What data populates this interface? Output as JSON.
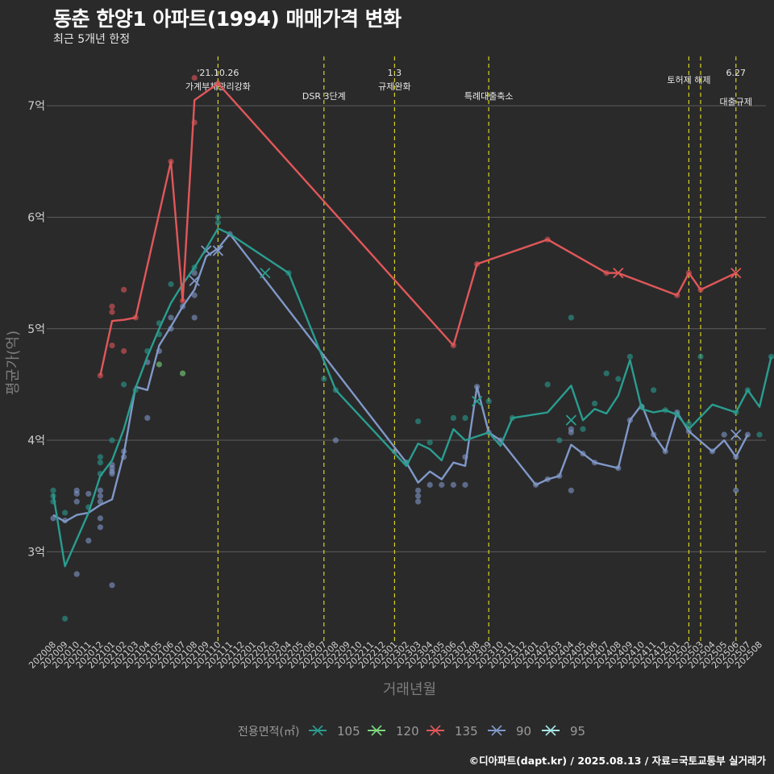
{
  "header": {
    "title": "동춘 한양1 아파트(1994) 매매가격 변화",
    "subtitle": "최근 5개년 한정"
  },
  "footer": {
    "caption": "©디아파트(dapt.kr) / 2025.08.13 / 자료=국토교통부 실거래가"
  },
  "colors": {
    "background": "#2a2a2b",
    "grid": "#5c5c5c",
    "event_line": "#d6d21f",
    "105": "#2a9d8f",
    "120": "#7dd87d",
    "135": "#e15759",
    "90": "#8098c8",
    "95": "#a8e6e6"
  },
  "chart_data": {
    "type": "line",
    "title": "동춘 한양1 아파트(1994) 매매가격 변화",
    "subtitle": "최근 5개년 한정",
    "xlabel": "거래년월",
    "ylabel": "평균가(억)",
    "x_categories": [
      "202008",
      "202009",
      "202010",
      "202011",
      "202012",
      "202101",
      "202102",
      "202103",
      "202104",
      "202105",
      "202106",
      "202107",
      "202108",
      "202109",
      "202110",
      "202111",
      "202112",
      "202201",
      "202202",
      "202203",
      "202204",
      "202205",
      "202206",
      "202207",
      "202208",
      "202209",
      "202210",
      "202211",
      "202212",
      "202301",
      "202302",
      "202303",
      "202304",
      "202305",
      "202306",
      "202307",
      "202308",
      "202309",
      "202310",
      "202311",
      "202312",
      "202401",
      "202402",
      "202403",
      "202404",
      "202405",
      "202406",
      "202407",
      "202408",
      "202409",
      "202410",
      "202411",
      "202412",
      "202501",
      "202502",
      "202503",
      "202504",
      "202505",
      "202506",
      "202507",
      "202508"
    ],
    "ylim": [
      2.2,
      7.5
    ],
    "y_ticks": [
      3,
      4,
      5,
      6,
      7
    ],
    "y_tick_labels": [
      "3억",
      "4억",
      "5억",
      "6억",
      "7억"
    ],
    "grid": true,
    "legend_title": "전용면적(㎡)",
    "legend_position": "bottom",
    "events": [
      {
        "x": "202110",
        "line1": "'21.10.26",
        "line2": "가계부채관리강화"
      },
      {
        "x": "202207",
        "line1": "",
        "line2": "DSR 3단계"
      },
      {
        "x": "202301",
        "line1": "1.3",
        "line2": "규제완화"
      },
      {
        "x": "202309",
        "line1": "",
        "line2": "특례대출축소"
      },
      {
        "x": "202502",
        "line1": "",
        "line2": "토허제 해제"
      },
      {
        "x": "202503",
        "line1": "",
        "line2": ""
      },
      {
        "x": "202506",
        "line1": "6.27",
        "line2": "대출규제"
      }
    ],
    "series": [
      {
        "name": "105",
        "line": [
          [
            0,
            3.52
          ],
          [
            1,
            2.87
          ],
          [
            3,
            3.35
          ],
          [
            4,
            3.68
          ],
          [
            5,
            3.82
          ],
          [
            6,
            4.1
          ],
          [
            7,
            4.47
          ],
          [
            8,
            4.75
          ],
          [
            9,
            5.0
          ],
          [
            10,
            5.23
          ],
          [
            11,
            5.4
          ],
          [
            12,
            5.55
          ],
          [
            13,
            5.72
          ],
          [
            14,
            5.9
          ],
          [
            15,
            5.85
          ],
          [
            20,
            5.5
          ],
          [
            24,
            4.45
          ],
          [
            30,
            3.77
          ],
          [
            31,
            3.97
          ],
          [
            32,
            3.92
          ],
          [
            33,
            3.82
          ],
          [
            34,
            4.1
          ],
          [
            35,
            4.0
          ],
          [
            37,
            4.07
          ],
          [
            38,
            3.95
          ],
          [
            39,
            4.2
          ],
          [
            42,
            4.25
          ],
          [
            44,
            4.49
          ],
          [
            45,
            4.18
          ],
          [
            46,
            4.28
          ],
          [
            47,
            4.24
          ],
          [
            48,
            4.4
          ],
          [
            49,
            4.72
          ],
          [
            50,
            4.28
          ],
          [
            51,
            4.25
          ],
          [
            52,
            4.27
          ],
          [
            53,
            4.23
          ],
          [
            54,
            4.1
          ],
          [
            56,
            4.32
          ],
          [
            58,
            4.25
          ],
          [
            59,
            4.45
          ],
          [
            60,
            4.3
          ],
          [
            61,
            4.75
          ]
        ],
        "points": [
          [
            0,
            3.55
          ],
          [
            0,
            3.5
          ],
          [
            0,
            3.45
          ],
          [
            1,
            3.35
          ],
          [
            1,
            2.4
          ],
          [
            3,
            3.4
          ],
          [
            4,
            3.85
          ],
          [
            4,
            3.8
          ],
          [
            4,
            3.7
          ],
          [
            5,
            4.0
          ],
          [
            6,
            4.5
          ],
          [
            7,
            4.45
          ],
          [
            8,
            4.8
          ],
          [
            9,
            5.05
          ],
          [
            9,
            4.95
          ],
          [
            10,
            5.4
          ],
          [
            12,
            5.55
          ],
          [
            14,
            6.0
          ],
          [
            14,
            5.95
          ],
          [
            20,
            5.5
          ],
          [
            23,
            4.55
          ],
          [
            24,
            4.45
          ],
          [
            30,
            3.8
          ],
          [
            31,
            4.17
          ],
          [
            32,
            3.98
          ],
          [
            34,
            4.2
          ],
          [
            35,
            4.2
          ],
          [
            37,
            4.35
          ],
          [
            39,
            4.2
          ],
          [
            42,
            4.5
          ],
          [
            43,
            4.0
          ],
          [
            44,
            5.1
          ],
          [
            45,
            4.1
          ],
          [
            46,
            4.33
          ],
          [
            47,
            4.6
          ],
          [
            48,
            4.55
          ],
          [
            49,
            4.75
          ],
          [
            50,
            4.3
          ],
          [
            51,
            4.45
          ],
          [
            52,
            4.27
          ],
          [
            53,
            4.23
          ],
          [
            54,
            4.15
          ],
          [
            55,
            4.75
          ],
          [
            58,
            4.25
          ],
          [
            59,
            4.45
          ],
          [
            60,
            4.05
          ],
          [
            61,
            4.75
          ]
        ],
        "crosses": [
          [
            18,
            5.5
          ],
          [
            36,
            4.35
          ],
          [
            44,
            4.18
          ]
        ]
      },
      {
        "name": "120",
        "line": [],
        "points": [
          [
            9,
            4.68
          ],
          [
            11,
            4.6
          ]
        ],
        "crosses": []
      },
      {
        "name": "135",
        "line": [
          [
            4,
            4.58
          ],
          [
            5,
            5.07
          ],
          [
            6,
            5.08
          ],
          [
            7,
            5.1
          ],
          [
            10,
            6.5
          ],
          [
            11,
            5.25
          ],
          [
            12,
            7.05
          ],
          [
            14,
            7.2
          ],
          [
            34,
            4.85
          ],
          [
            36,
            5.58
          ],
          [
            42,
            5.8
          ],
          [
            47,
            5.5
          ],
          [
            48,
            5.5
          ],
          [
            53,
            5.3
          ],
          [
            54,
            5.5
          ],
          [
            55,
            5.35
          ],
          [
            58,
            5.5
          ]
        ],
        "points": [
          [
            4,
            4.58
          ],
          [
            5,
            5.2
          ],
          [
            5,
            5.15
          ],
          [
            5,
            4.85
          ],
          [
            6,
            5.35
          ],
          [
            6,
            4.8
          ],
          [
            7,
            5.1
          ],
          [
            10,
            6.5
          ],
          [
            11,
            5.25
          ],
          [
            12,
            7.25
          ],
          [
            12,
            6.85
          ],
          [
            14,
            7.2
          ],
          [
            34,
            4.85
          ],
          [
            36,
            5.58
          ],
          [
            42,
            5.8
          ],
          [
            47,
            5.5
          ],
          [
            53,
            5.3
          ],
          [
            54,
            5.5
          ],
          [
            55,
            5.35
          ]
        ],
        "crosses": [
          [
            48,
            5.5
          ],
          [
            58,
            5.5
          ]
        ]
      },
      {
        "name": "90",
        "line": [
          [
            0,
            3.33
          ],
          [
            1,
            3.27
          ],
          [
            2,
            3.33
          ],
          [
            3,
            3.35
          ],
          [
            4,
            3.42
          ],
          [
            5,
            3.47
          ],
          [
            6,
            3.88
          ],
          [
            7,
            4.48
          ],
          [
            8,
            4.45
          ],
          [
            9,
            4.85
          ],
          [
            10,
            5.02
          ],
          [
            11,
            5.2
          ],
          [
            12,
            5.35
          ],
          [
            13,
            5.65
          ],
          [
            14,
            5.72
          ],
          [
            15,
            5.85
          ],
          [
            30,
            3.8
          ],
          [
            31,
            3.62
          ],
          [
            32,
            3.72
          ],
          [
            33,
            3.65
          ],
          [
            34,
            3.8
          ],
          [
            35,
            3.77
          ],
          [
            36,
            4.48
          ],
          [
            37,
            4.07
          ],
          [
            38,
            4.0
          ],
          [
            41,
            3.6
          ],
          [
            42,
            3.65
          ],
          [
            43,
            3.68
          ],
          [
            44,
            3.96
          ],
          [
            45,
            3.88
          ],
          [
            46,
            3.8
          ],
          [
            48,
            3.75
          ],
          [
            49,
            4.18
          ],
          [
            50,
            4.32
          ],
          [
            51,
            4.05
          ],
          [
            52,
            3.9
          ],
          [
            53,
            4.25
          ],
          [
            54,
            4.08
          ],
          [
            56,
            3.9
          ],
          [
            57,
            4.0
          ],
          [
            58,
            3.85
          ],
          [
            59,
            4.05
          ]
        ],
        "points": [
          [
            0,
            3.3
          ],
          [
            1,
            3.28
          ],
          [
            2,
            3.55
          ],
          [
            2,
            3.52
          ],
          [
            2,
            3.45
          ],
          [
            2,
            2.8
          ],
          [
            3,
            3.52
          ],
          [
            3,
            3.1
          ],
          [
            4,
            3.55
          ],
          [
            4,
            3.5
          ],
          [
            4,
            3.45
          ],
          [
            4,
            3.3
          ],
          [
            4,
            3.22
          ],
          [
            5,
            3.78
          ],
          [
            5,
            3.75
          ],
          [
            5,
            3.72
          ],
          [
            5,
            3.7
          ],
          [
            5,
            2.7
          ],
          [
            6,
            3.9
          ],
          [
            6,
            3.85
          ],
          [
            8,
            4.7
          ],
          [
            8,
            4.2
          ],
          [
            9,
            4.8
          ],
          [
            10,
            5.1
          ],
          [
            10,
            5.0
          ],
          [
            11,
            5.2
          ],
          [
            12,
            5.5
          ],
          [
            12,
            5.3
          ],
          [
            12,
            5.1
          ],
          [
            15,
            5.85
          ],
          [
            24,
            4.0
          ],
          [
            29,
            3.9
          ],
          [
            30,
            3.8
          ],
          [
            31,
            3.55
          ],
          [
            31,
            3.5
          ],
          [
            31,
            3.45
          ],
          [
            32,
            3.6
          ],
          [
            33,
            3.6
          ],
          [
            34,
            3.6
          ],
          [
            35,
            3.85
          ],
          [
            35,
            3.6
          ],
          [
            36,
            4.48
          ],
          [
            37,
            4.07
          ],
          [
            38,
            4.0
          ],
          [
            41,
            3.6
          ],
          [
            42,
            3.65
          ],
          [
            43,
            3.68
          ],
          [
            44,
            4.1
          ],
          [
            44,
            4.07
          ],
          [
            44,
            3.55
          ],
          [
            45,
            3.88
          ],
          [
            46,
            3.8
          ],
          [
            48,
            3.75
          ],
          [
            49,
            4.18
          ],
          [
            50,
            4.3
          ],
          [
            51,
            4.05
          ],
          [
            52,
            3.9
          ],
          [
            53,
            4.25
          ],
          [
            54,
            4.08
          ],
          [
            56,
            3.9
          ],
          [
            57,
            4.05
          ],
          [
            58,
            3.85
          ],
          [
            58,
            3.55
          ],
          [
            59,
            4.05
          ]
        ],
        "crosses": [
          [
            12,
            5.43
          ],
          [
            13,
            5.7
          ],
          [
            14,
            5.7
          ],
          [
            58,
            4.05
          ]
        ]
      },
      {
        "name": "95",
        "line": [],
        "points": [],
        "crosses": []
      }
    ]
  }
}
